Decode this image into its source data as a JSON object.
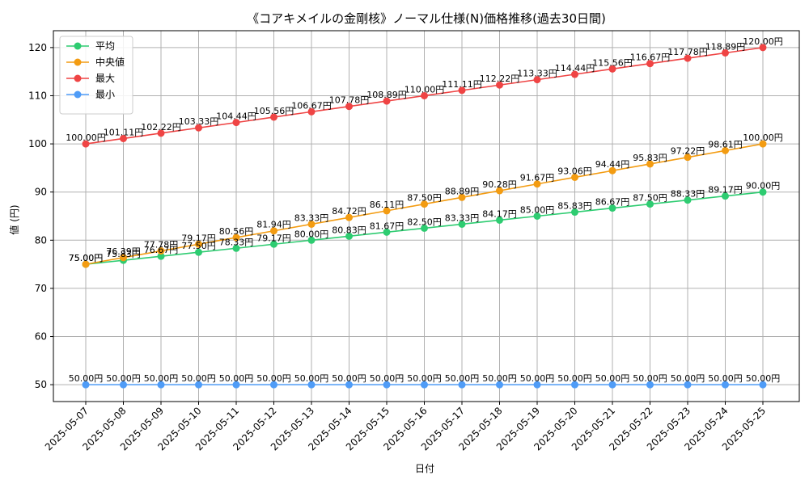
{
  "chart_data": {
    "type": "line",
    "title": "《コアキメイルの金剛核》ノーマル仕様(N)価格推移(過去30日間)",
    "xlabel": "日付",
    "ylabel": "値 (円)",
    "categories": [
      "2025-05-07",
      "2025-05-08",
      "2025-05-09",
      "2025-05-10",
      "2025-05-11",
      "2025-05-12",
      "2025-05-13",
      "2025-05-14",
      "2025-05-15",
      "2025-05-16",
      "2025-05-17",
      "2025-05-18",
      "2025-05-19",
      "2025-05-20",
      "2025-05-21",
      "2025-05-22",
      "2025-05-23",
      "2025-05-24",
      "2025-05-25"
    ],
    "ylim": [
      46.5,
      123.5
    ],
    "yticks": [
      50,
      60,
      70,
      80,
      90,
      100,
      110,
      120
    ],
    "grid": true,
    "legend_position": "top-left",
    "value_label_suffix": "円",
    "series": [
      {
        "name": "平均",
        "color": "#2ecc71",
        "values": [
          75.0,
          75.83,
          76.67,
          77.5,
          78.33,
          79.17,
          80.0,
          80.83,
          81.67,
          82.5,
          83.33,
          84.17,
          85.0,
          85.83,
          86.67,
          87.5,
          88.33,
          89.17,
          90.0
        ]
      },
      {
        "name": "中央値",
        "color": "#f39c12",
        "values": [
          75.0,
          76.39,
          77.78,
          79.17,
          80.56,
          81.94,
          83.33,
          84.72,
          86.11,
          87.5,
          88.89,
          90.28,
          91.67,
          93.06,
          94.44,
          95.83,
          97.22,
          98.61,
          100.0
        ]
      },
      {
        "name": "最大",
        "color": "#ef4444",
        "values": [
          100.0,
          101.11,
          102.22,
          103.33,
          104.44,
          105.56,
          106.67,
          107.78,
          108.89,
          110.0,
          111.11,
          112.22,
          113.33,
          114.44,
          115.56,
          116.67,
          117.78,
          118.89,
          120.0
        ]
      },
      {
        "name": "最小",
        "color": "#4f9cf7",
        "values": [
          50.0,
          50.0,
          50.0,
          50.0,
          50.0,
          50.0,
          50.0,
          50.0,
          50.0,
          50.0,
          50.0,
          50.0,
          50.0,
          50.0,
          50.0,
          50.0,
          50.0,
          50.0,
          50.0
        ]
      }
    ]
  }
}
